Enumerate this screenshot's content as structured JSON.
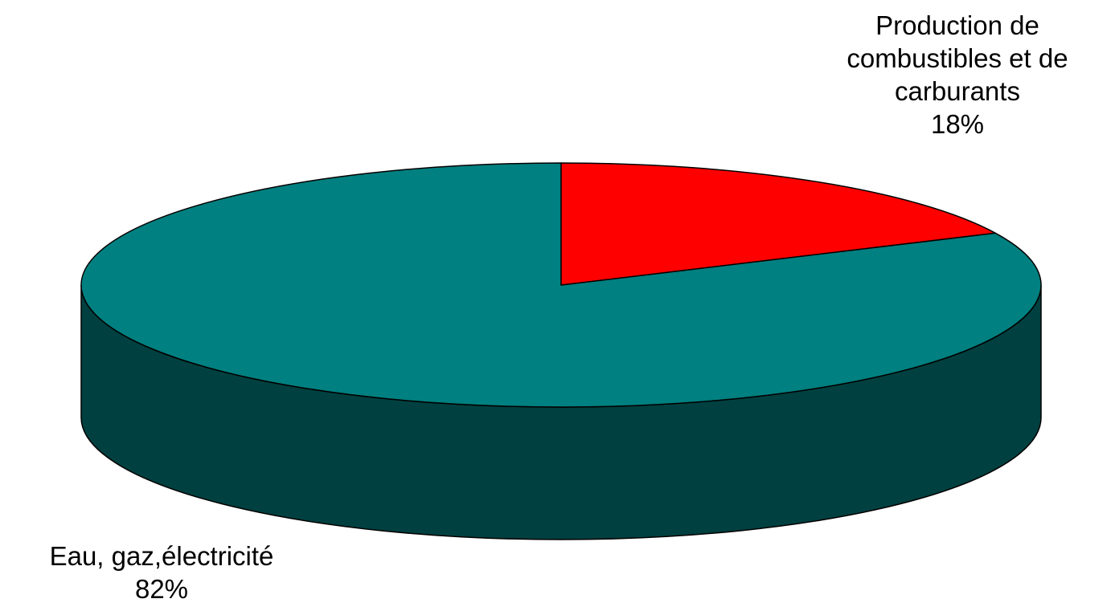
{
  "chart_data": {
    "type": "pie",
    "style": "3d",
    "title": "",
    "slices": [
      {
        "label_lines": [
          "Eau, gaz,électricité"
        ],
        "value_label": "82%",
        "value": 82,
        "color": "#008080",
        "side_color": "#004040"
      },
      {
        "label_lines": [
          "Production de",
          "combustibles et de",
          "carburants"
        ],
        "value_label": "18%",
        "value": 18,
        "color": "#ff0000",
        "side_color": "#800000"
      }
    ],
    "legend": "none"
  }
}
